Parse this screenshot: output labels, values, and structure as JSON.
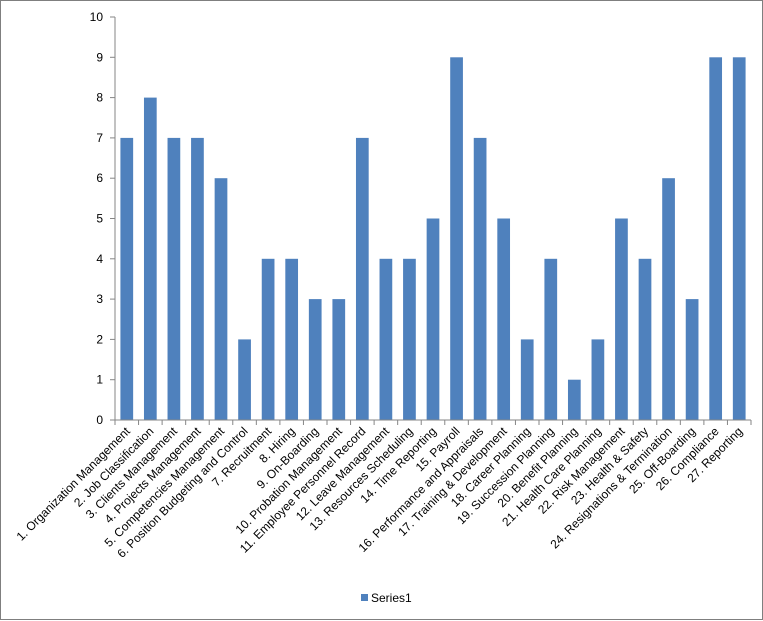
{
  "chart_data": {
    "type": "bar",
    "categories": [
      "1. Organization Management",
      "2. Job Classification",
      "3. Clients Management",
      "4. Projects Management",
      "5. Competencies Management",
      "6. Position Budgeting and Control",
      "7. Recruitment",
      "8. Hiring",
      "9. On-Boarding",
      "10. Probation Management",
      "11. Employee Personnel Record",
      "12. Leave Management",
      "13. Resources Scheduling",
      "14. Time Reporting",
      "15. Payroll",
      "16. Performance and Appraisals",
      "17. Training & Development",
      "18. Career Planning",
      "19. Succession Planning",
      "20. Benefit Planning",
      "21. Health Care Planning",
      "22. Risk Management",
      "23. Health & Safety",
      "24. Resignations & Termination",
      "25. Off-Boarding",
      "26. Compliance",
      "27. Reporting"
    ],
    "series": [
      {
        "name": "Series1",
        "values": [
          7,
          8,
          7,
          7,
          6,
          2,
          4,
          4,
          3,
          3,
          7,
          4,
          4,
          5,
          9,
          7,
          5,
          2,
          4,
          1,
          2,
          5,
          4,
          6,
          3,
          9,
          9
        ]
      }
    ],
    "title": "",
    "xlabel": "",
    "ylabel": "",
    "ylim": [
      0,
      10
    ],
    "yticks": [
      "0",
      "1",
      "2",
      "3",
      "4",
      "5",
      "6",
      "7",
      "8",
      "9",
      "10"
    ],
    "grid": false,
    "legend_position": "bottom",
    "colors": {
      "bar": "#4f81bd",
      "axis": "#868686"
    }
  }
}
